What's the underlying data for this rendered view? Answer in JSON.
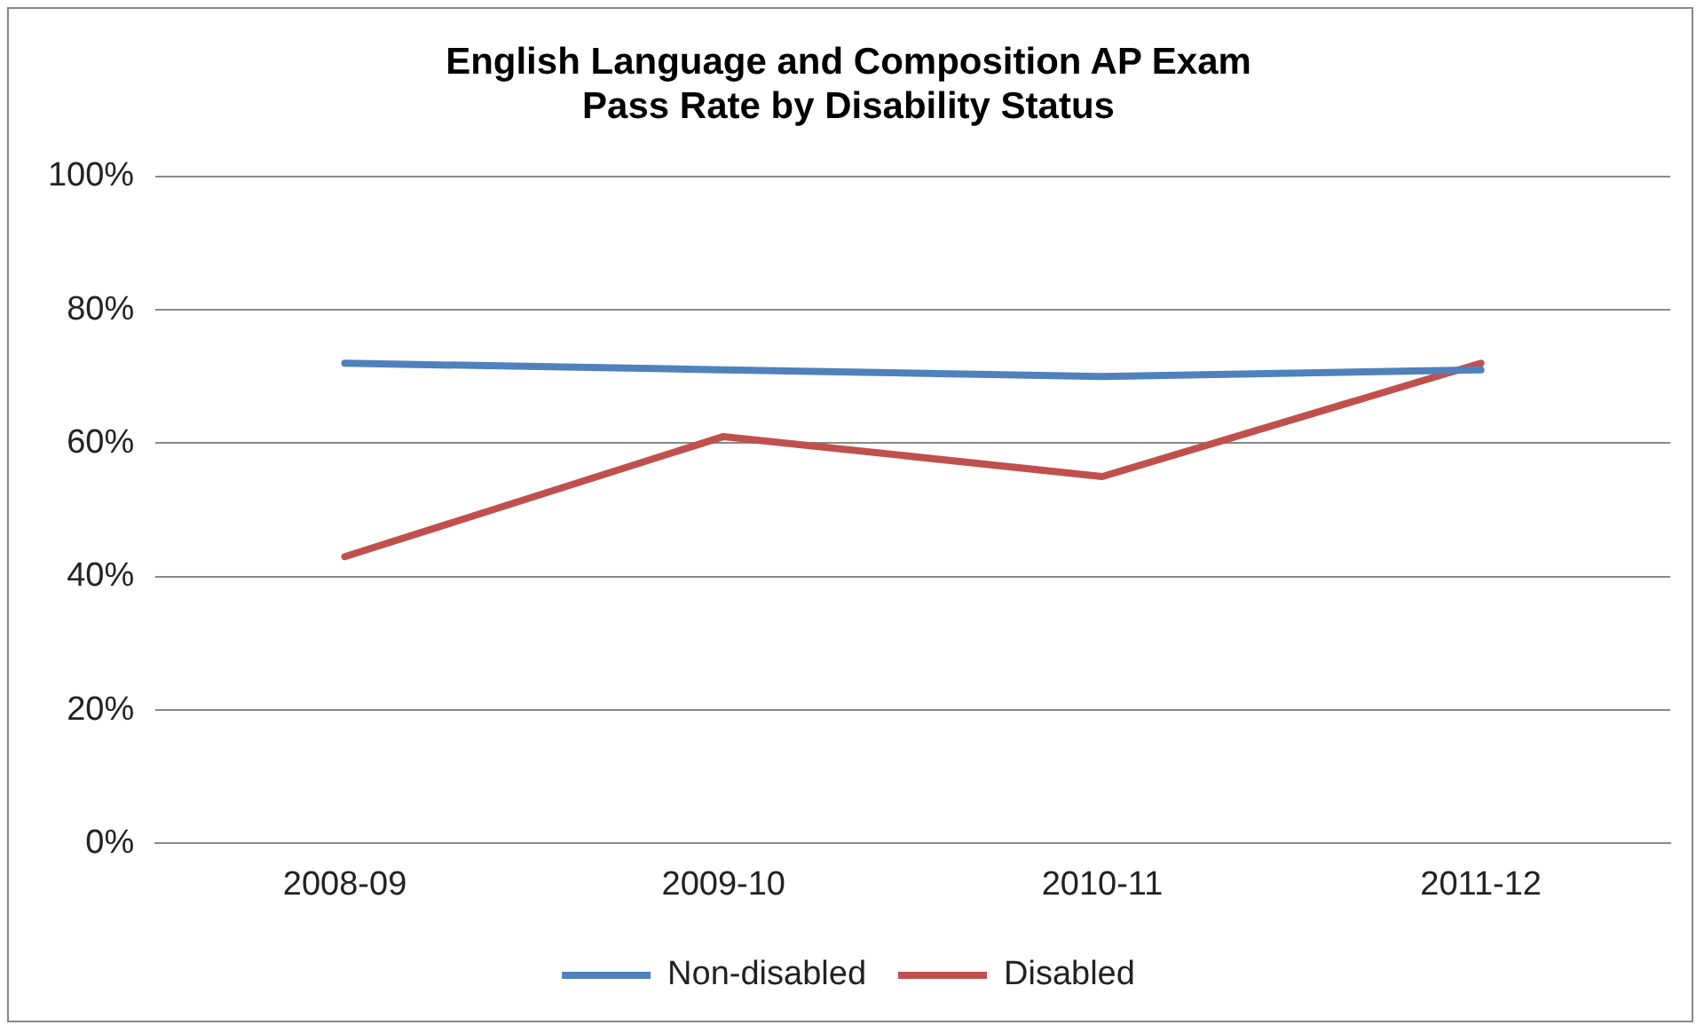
{
  "chart_data": {
    "type": "line",
    "title": "English Language and Composition AP Exam\nPass Rate by Disability Status",
    "categories": [
      "2008-09",
      "2009-10",
      "2010-11",
      "2011-12"
    ],
    "series": [
      {
        "name": "Non-disabled",
        "color": "#4f81bd",
        "values": [
          72,
          71,
          70,
          71
        ]
      },
      {
        "name": "Disabled",
        "color": "#c0504d",
        "values": [
          43,
          61,
          55,
          72
        ]
      }
    ],
    "ylim": [
      0,
      100
    ],
    "yticks": [
      {
        "value": 0,
        "label": "0%"
      },
      {
        "value": 20,
        "label": "20%"
      },
      {
        "value": 40,
        "label": "40%"
      },
      {
        "value": 60,
        "label": "60%"
      },
      {
        "value": 80,
        "label": "80%"
      },
      {
        "value": 100,
        "label": "100%"
      }
    ],
    "grid": "y",
    "legend": "bottom",
    "marker": "none",
    "line_style": "solid"
  }
}
